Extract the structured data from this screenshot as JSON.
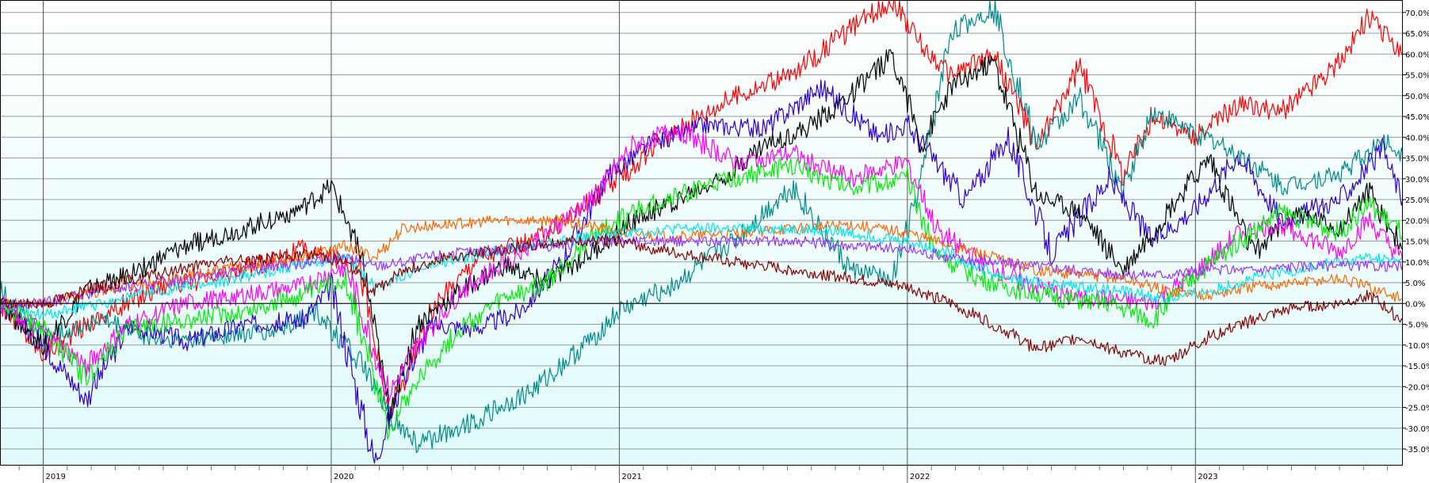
{
  "chart_data": {
    "type": "line",
    "title": "",
    "xlabel": "",
    "ylabel": "",
    "x_ticks": [
      "2019",
      "2020",
      "2021",
      "2022",
      "2023"
    ],
    "x_range": [
      2018.85,
      2023.72
    ],
    "ylim": [
      -0.39,
      0.73
    ],
    "y_ticks": [
      0.7,
      0.65,
      0.6,
      0.55,
      0.5,
      0.45,
      0.4,
      0.35,
      0.3,
      0.25,
      0.2,
      0.15,
      0.1,
      0.05,
      0.0,
      -0.05,
      -0.1,
      -0.15,
      -0.2,
      -0.25,
      -0.3,
      -0.35
    ],
    "y_tick_labels": [
      "70.0%",
      "65.0%",
      "60.0%",
      "55.0%",
      "50.0%",
      "45.0%",
      "40.0%",
      "35.0%",
      "30.0%",
      "25.0%",
      "20.0%",
      "15.0%",
      "10.0%",
      "5.0%",
      "0.0%",
      "-5.0%",
      "-10.0%",
      "-15.0%",
      "-20.0%",
      "-25.0%",
      "-30.0%",
      "-35.0%"
    ],
    "baseline": 0.0,
    "grid": true,
    "legend": "none",
    "background": {
      "top": "#ffffff",
      "bottom": "#dffbfc"
    },
    "series": [
      {
        "color": "#ff0000",
        "x": [
          2018.85,
          2019.0,
          2019.15,
          2019.4,
          2019.6,
          2019.9,
          2020.1,
          2020.2,
          2020.35,
          2020.5,
          2020.7,
          2020.85,
          2021.0,
          2021.2,
          2021.4,
          2021.6,
          2021.8,
          2021.95,
          2022.05,
          2022.15,
          2022.3,
          2022.45,
          2022.6,
          2022.75,
          2022.85,
          2023.0,
          2023.15,
          2023.3,
          2023.5,
          2023.6,
          2023.72
        ],
        "values": [
          0.0,
          -0.12,
          -0.05,
          0.04,
          0.06,
          0.13,
          0.09,
          -0.27,
          -0.02,
          0.11,
          0.15,
          0.22,
          0.3,
          0.42,
          0.5,
          0.55,
          0.66,
          0.73,
          0.62,
          0.55,
          0.6,
          0.38,
          0.57,
          0.31,
          0.45,
          0.4,
          0.48,
          0.46,
          0.58,
          0.69,
          0.6
        ]
      },
      {
        "color": "#008b8b",
        "x": [
          2018.85,
          2019.0,
          2019.2,
          2019.4,
          2019.6,
          2019.8,
          2019.95,
          2020.1,
          2020.2,
          2020.3,
          2020.5,
          2020.7,
          2020.85,
          2021.0,
          2021.2,
          2021.4,
          2021.6,
          2021.8,
          2021.95,
          2022.05,
          2022.15,
          2022.3,
          2022.45,
          2022.6,
          2022.75,
          2022.85,
          2023.0,
          2023.15,
          2023.3,
          2023.5,
          2023.65,
          2023.72
        ],
        "values": [
          0.03,
          -0.08,
          -0.04,
          -0.09,
          -0.08,
          -0.07,
          -0.02,
          -0.14,
          -0.27,
          -0.34,
          -0.28,
          -0.21,
          -0.12,
          -0.02,
          0.05,
          0.15,
          0.28,
          0.08,
          0.06,
          0.3,
          0.65,
          0.71,
          0.38,
          0.49,
          0.27,
          0.46,
          0.41,
          0.36,
          0.28,
          0.31,
          0.39,
          0.36
        ]
      },
      {
        "color": "#3300cc",
        "x": [
          2018.85,
          2019.0,
          2019.15,
          2019.3,
          2019.5,
          2019.7,
          2019.9,
          2020.0,
          2020.15,
          2020.25,
          2020.35,
          2020.5,
          2020.65,
          2020.8,
          2020.95,
          2021.1,
          2021.3,
          2021.5,
          2021.7,
          2021.9,
          2022.0,
          2022.2,
          2022.35,
          2022.5,
          2022.7,
          2022.85,
          2023.0,
          2023.15,
          2023.3,
          2023.5,
          2023.65,
          2023.72
        ],
        "values": [
          0.0,
          -0.1,
          -0.23,
          -0.05,
          -0.09,
          -0.05,
          -0.04,
          0.04,
          -0.38,
          -0.18,
          -0.05,
          -0.06,
          -0.02,
          0.1,
          0.3,
          0.38,
          0.43,
          0.42,
          0.52,
          0.4,
          0.43,
          0.25,
          0.4,
          0.12,
          0.3,
          0.15,
          0.23,
          0.36,
          0.2,
          0.25,
          0.37,
          0.25
        ]
      },
      {
        "color": "#000000",
        "x": [
          2018.85,
          2019.0,
          2019.15,
          2019.3,
          2019.5,
          2019.7,
          2019.9,
          2020.0,
          2020.1,
          2020.2,
          2020.3,
          2020.45,
          2020.6,
          2020.75,
          2020.9,
          2021.05,
          2021.2,
          2021.35,
          2021.5,
          2021.65,
          2021.8,
          2021.95,
          2022.05,
          2022.15,
          2022.3,
          2022.45,
          2022.6,
          2022.75,
          2022.9,
          2023.05,
          2023.2,
          2023.35,
          2023.5,
          2023.6,
          2023.72
        ],
        "values": [
          0.0,
          -0.1,
          0.03,
          0.07,
          0.14,
          0.18,
          0.23,
          0.28,
          0.13,
          -0.26,
          -0.05,
          0.03,
          0.09,
          0.05,
          0.12,
          0.2,
          0.25,
          0.3,
          0.38,
          0.42,
          0.5,
          0.6,
          0.38,
          0.52,
          0.58,
          0.26,
          0.22,
          0.08,
          0.22,
          0.35,
          0.12,
          0.22,
          0.18,
          0.27,
          0.13
        ]
      },
      {
        "color": "#ff00ff",
        "x": [
          2018.85,
          2019.0,
          2019.15,
          2019.3,
          2019.5,
          2019.7,
          2019.9,
          2020.05,
          2020.2,
          2020.3,
          2020.45,
          2020.6,
          2020.75,
          2020.9,
          2021.05,
          2021.2,
          2021.4,
          2021.6,
          2021.8,
          2022.0,
          2022.1,
          2022.25,
          2022.4,
          2022.55,
          2022.7,
          2022.85,
          2023.0,
          2023.15,
          2023.3,
          2023.5,
          2023.6,
          2023.72
        ],
        "values": [
          0.0,
          -0.07,
          -0.15,
          -0.05,
          0.0,
          0.02,
          0.04,
          0.09,
          -0.22,
          -0.1,
          0.03,
          0.1,
          0.17,
          0.25,
          0.38,
          0.42,
          0.34,
          0.36,
          0.3,
          0.34,
          0.18,
          0.1,
          0.05,
          0.02,
          0.01,
          0.0,
          0.07,
          0.17,
          0.19,
          0.12,
          0.2,
          0.1
        ]
      },
      {
        "color": "#00ee00",
        "x": [
          2018.85,
          2019.0,
          2019.15,
          2019.3,
          2019.5,
          2019.7,
          2019.9,
          2020.05,
          2020.2,
          2020.3,
          2020.45,
          2020.6,
          2020.75,
          2020.9,
          2021.05,
          2021.2,
          2021.4,
          2021.6,
          2021.8,
          2022.0,
          2022.1,
          2022.25,
          2022.4,
          2022.55,
          2022.7,
          2022.85,
          2023.0,
          2023.15,
          2023.3,
          2023.5,
          2023.6,
          2023.72
        ],
        "values": [
          0.0,
          -0.06,
          -0.18,
          -0.06,
          -0.04,
          -0.02,
          0.02,
          0.06,
          -0.3,
          -0.18,
          -0.06,
          0.01,
          0.05,
          0.16,
          0.22,
          0.26,
          0.3,
          0.33,
          0.28,
          0.3,
          0.12,
          0.06,
          0.03,
          0.01,
          0.0,
          -0.04,
          0.07,
          0.15,
          0.22,
          0.17,
          0.24,
          0.17
        ]
      },
      {
        "color": "#ff6600",
        "x": [
          2018.85,
          2019.0,
          2019.2,
          2019.4,
          2019.6,
          2019.8,
          2019.95,
          2020.05,
          2020.15,
          2020.25,
          2020.4,
          2020.6,
          2020.8,
          2021.0,
          2021.2,
          2021.4,
          2021.6,
          2021.8,
          2022.0,
          2022.15,
          2022.3,
          2022.45,
          2022.6,
          2022.75,
          2022.9,
          2023.05,
          2023.2,
          2023.35,
          2023.5,
          2023.6,
          2023.72
        ],
        "values": [
          0.0,
          0.0,
          0.03,
          0.05,
          0.08,
          0.1,
          0.12,
          0.14,
          0.11,
          0.18,
          0.19,
          0.2,
          0.2,
          0.17,
          0.16,
          0.17,
          0.18,
          0.19,
          0.17,
          0.14,
          0.11,
          0.08,
          0.07,
          0.06,
          0.03,
          0.02,
          0.04,
          0.05,
          0.06,
          0.04,
          0.01
        ]
      },
      {
        "color": "#00e5ee",
        "x": [
          2018.85,
          2019.0,
          2019.2,
          2019.4,
          2019.6,
          2019.8,
          2019.95,
          2020.05,
          2020.15,
          2020.25,
          2020.4,
          2020.6,
          2020.8,
          2021.0,
          2021.2,
          2021.4,
          2021.6,
          2021.8,
          2022.0,
          2022.15,
          2022.3,
          2022.45,
          2022.6,
          2022.75,
          2022.9,
          2023.05,
          2023.2,
          2023.35,
          2023.5,
          2023.6,
          2023.72
        ],
        "values": [
          0.0,
          -0.03,
          0.0,
          0.03,
          0.05,
          0.08,
          0.1,
          0.11,
          0.04,
          0.07,
          0.1,
          0.13,
          0.15,
          0.17,
          0.18,
          0.18,
          0.18,
          0.17,
          0.15,
          0.12,
          0.07,
          0.05,
          0.04,
          0.03,
          0.01,
          0.03,
          0.06,
          0.08,
          0.1,
          0.11,
          0.1
        ]
      },
      {
        "color": "#9933ff",
        "x": [
          2018.85,
          2019.0,
          2019.2,
          2019.4,
          2019.6,
          2019.8,
          2019.95,
          2020.05,
          2020.15,
          2020.25,
          2020.4,
          2020.6,
          2020.8,
          2021.0,
          2021.2,
          2021.4,
          2021.6,
          2021.8,
          2022.0,
          2022.15,
          2022.3,
          2022.45,
          2022.6,
          2022.75,
          2022.9,
          2023.05,
          2023.2,
          2023.35,
          2023.5,
          2023.6,
          2023.72
        ],
        "values": [
          0.0,
          0.0,
          0.03,
          0.05,
          0.07,
          0.09,
          0.1,
          0.11,
          0.09,
          0.1,
          0.12,
          0.13,
          0.14,
          0.15,
          0.15,
          0.15,
          0.15,
          0.14,
          0.13,
          0.11,
          0.1,
          0.09,
          0.08,
          0.07,
          0.07,
          0.08,
          0.08,
          0.09,
          0.09,
          0.09,
          0.09
        ]
      },
      {
        "color": "#8b0000",
        "x": [
          2018.85,
          2019.0,
          2019.2,
          2019.4,
          2019.6,
          2019.8,
          2019.95,
          2020.05,
          2020.15,
          2020.25,
          2020.4,
          2020.6,
          2020.8,
          2021.0,
          2021.2,
          2021.4,
          2021.6,
          2021.8,
          2022.0,
          2022.15,
          2022.3,
          2022.45,
          2022.6,
          2022.75,
          2022.9,
          2023.05,
          2023.2,
          2023.35,
          2023.5,
          2023.6,
          2023.72
        ],
        "values": [
          0.0,
          0.0,
          0.04,
          0.07,
          0.1,
          0.11,
          0.12,
          0.1,
          0.03,
          0.08,
          0.11,
          0.13,
          0.15,
          0.15,
          0.12,
          0.1,
          0.08,
          0.06,
          0.04,
          0.0,
          -0.05,
          -0.11,
          -0.08,
          -0.12,
          -0.14,
          -0.08,
          -0.04,
          -0.01,
          0.0,
          0.02,
          -0.04
        ]
      }
    ]
  }
}
